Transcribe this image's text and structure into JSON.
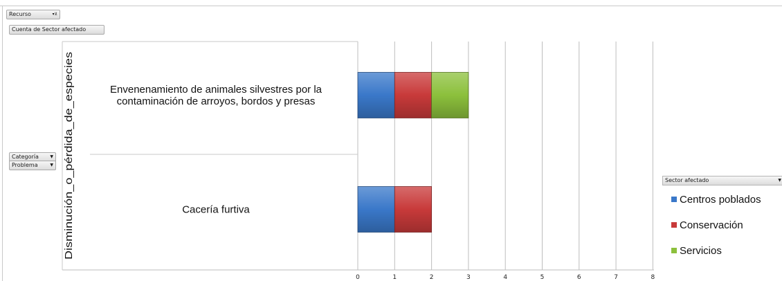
{
  "fields": {
    "recurso": "Recurso",
    "cuenta": "Cuenta de Sector afectado",
    "categoria": "Categoría",
    "problema": "Problema"
  },
  "legend": {
    "title": "Sector afectado"
  },
  "colors": {
    "Centros poblados": "#3a78c9",
    "Conservación": "#c83a3a",
    "Servicios": "#8cc03c"
  },
  "chart_data": {
    "type": "bar",
    "orientation": "horizontal",
    "stacked": true,
    "title": "",
    "group_label": "Disminución_o_pérdida_de_especies",
    "categories": [
      "Envenenamiento de animales silvestres por la contaminación de arroyos, bordos y presas",
      "Cacería furtiva"
    ],
    "category_lines": [
      [
        "Envenenamiento de animales silvestres por la",
        "contaminación de arroyos, bordos y presas"
      ],
      [
        "Cacería furtiva"
      ]
    ],
    "series": [
      {
        "name": "Centros poblados",
        "values": [
          1,
          1
        ]
      },
      {
        "name": "Conservación",
        "values": [
          1,
          1
        ]
      },
      {
        "name": "Servicios",
        "values": [
          1,
          0
        ]
      }
    ],
    "xlim": [
      0,
      8
    ],
    "xticks": [
      0,
      1,
      2,
      3,
      4,
      5,
      6,
      7,
      8
    ],
    "grid": true,
    "legend_position": "right"
  }
}
